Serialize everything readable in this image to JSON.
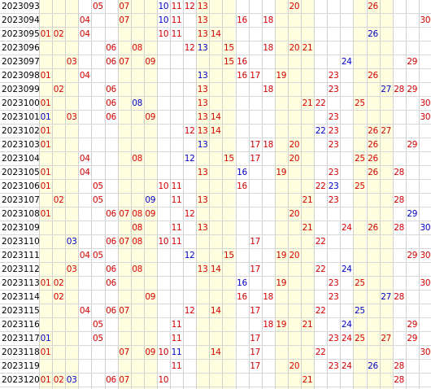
{
  "table": {
    "columns": [
      "01",
      "02",
      "03",
      "04",
      "05",
      "06",
      "07",
      "08",
      "09",
      "10",
      "11",
      "12",
      "13",
      "14",
      "15",
      "16",
      "17",
      "18",
      "19",
      "20",
      "21",
      "22",
      "23",
      "24",
      "25",
      "26",
      "27",
      "28",
      "29",
      "30"
    ],
    "colors": {
      "red": "#d40000",
      "blue": "#0000c8",
      "cell_bg": "#ffffe0",
      "white": "#ffffff"
    },
    "rows": [
      {
        "period": "2023093",
        "reds": [
          "05",
          "07",
          "11",
          "12",
          "13",
          "20",
          "26"
        ],
        "blues": [
          "10"
        ]
      },
      {
        "period": "2023094",
        "reds": [
          "04",
          "07",
          "11",
          "13",
          "16",
          "18",
          "30"
        ],
        "blues": [
          "10"
        ]
      },
      {
        "period": "2023095",
        "reds": [
          "01",
          "02",
          "04",
          "10",
          "11",
          "13",
          "14"
        ],
        "blues": [
          "26"
        ]
      },
      {
        "period": "2023096",
        "reds": [
          "06",
          "08",
          "12",
          "15",
          "18",
          "20",
          "21"
        ],
        "blues": [
          "13"
        ]
      },
      {
        "period": "2023097",
        "reds": [
          "03",
          "06",
          "07",
          "09",
          "15",
          "16",
          "29"
        ],
        "blues": [
          "24"
        ]
      },
      {
        "period": "2023098",
        "reds": [
          "01",
          "04",
          "16",
          "17",
          "19",
          "23",
          "26"
        ],
        "blues": [
          "13"
        ]
      },
      {
        "period": "2023099",
        "reds": [
          "02",
          "06",
          "13",
          "18",
          "23",
          "28",
          "29"
        ],
        "blues": [
          "27"
        ]
      },
      {
        "period": "2023100",
        "reds": [
          "01",
          "06",
          "13",
          "21",
          "22",
          "25",
          "30"
        ],
        "blues": [
          "08"
        ]
      },
      {
        "period": "2023101",
        "reds": [
          "03",
          "06",
          "09",
          "13",
          "14",
          "23",
          "30"
        ],
        "blues": [
          "01"
        ]
      },
      {
        "period": "2023102",
        "reds": [
          "01",
          "12",
          "13",
          "14",
          "23",
          "26",
          "27"
        ],
        "blues": [
          "22"
        ]
      },
      {
        "period": "2023103",
        "reds": [
          "01",
          "17",
          "18",
          "20",
          "23",
          "26",
          "29"
        ],
        "blues": [
          "13"
        ]
      },
      {
        "period": "2023104",
        "reds": [
          "04",
          "08",
          "15",
          "17",
          "20",
          "25",
          "26"
        ],
        "blues": [
          "12"
        ]
      },
      {
        "period": "2023105",
        "reds": [
          "01",
          "04",
          "13",
          "19",
          "23",
          "26",
          "28"
        ],
        "blues": [
          "16"
        ]
      },
      {
        "period": "2023106",
        "reds": [
          "01",
          "05",
          "10",
          "11",
          "16",
          "22",
          "25"
        ],
        "blues": [
          "23"
        ]
      },
      {
        "period": "2023107",
        "reds": [
          "02",
          "05",
          "11",
          "13",
          "21",
          "23",
          "28"
        ],
        "blues": [
          "09"
        ]
      },
      {
        "period": "2023108",
        "reds": [
          "01",
          "06",
          "07",
          "08",
          "09",
          "12",
          "20"
        ],
        "blues": [
          "29"
        ]
      },
      {
        "period": "2023109",
        "reds": [
          "08",
          "11",
          "13",
          "21",
          "24",
          "26",
          "28"
        ],
        "blues": [
          "30"
        ]
      },
      {
        "period": "2023110",
        "reds": [
          "06",
          "07",
          "08",
          "10",
          "11",
          "17",
          "22"
        ],
        "blues": [
          "03"
        ]
      },
      {
        "period": "2023111",
        "reds": [
          "04",
          "05",
          "15",
          "19",
          "20",
          "29",
          "30"
        ],
        "blues": [
          "12"
        ]
      },
      {
        "period": "2023112",
        "reds": [
          "03",
          "06",
          "08",
          "13",
          "14",
          "17",
          "22"
        ],
        "blues": [
          "24"
        ]
      },
      {
        "period": "2023113",
        "reds": [
          "01",
          "02",
          "06",
          "19",
          "23",
          "25",
          "30"
        ],
        "blues": [
          "16"
        ]
      },
      {
        "period": "2023114",
        "reds": [
          "02",
          "09",
          "16",
          "18",
          "23",
          "28"
        ],
        "blues": [
          "27"
        ]
      },
      {
        "period": "2023115",
        "reds": [
          "04",
          "06",
          "07",
          "12",
          "14",
          "17",
          "22"
        ],
        "blues": [
          "25"
        ]
      },
      {
        "period": "2023116",
        "reds": [
          "05",
          "11",
          "18",
          "19",
          "21",
          "29"
        ],
        "blues": [
          "24"
        ]
      },
      {
        "period": "2023117",
        "reds": [
          "05",
          "11",
          "17",
          "23",
          "24",
          "25",
          "27",
          "29"
        ],
        "blues": [
          "01"
        ]
      },
      {
        "period": "2023118",
        "reds": [
          "01",
          "07",
          "09",
          "10",
          "14",
          "17",
          "22",
          "30"
        ],
        "blues": [
          "11"
        ]
      },
      {
        "period": "2023119",
        "reds": [
          "11",
          "17",
          "20",
          "23",
          "24",
          "28"
        ],
        "blues": [
          "26"
        ]
      },
      {
        "period": "2023120",
        "reds": [
          "01",
          "02",
          "06",
          "07",
          "10",
          "21",
          "28"
        ],
        "blues": [
          "03"
        ]
      }
    ]
  }
}
